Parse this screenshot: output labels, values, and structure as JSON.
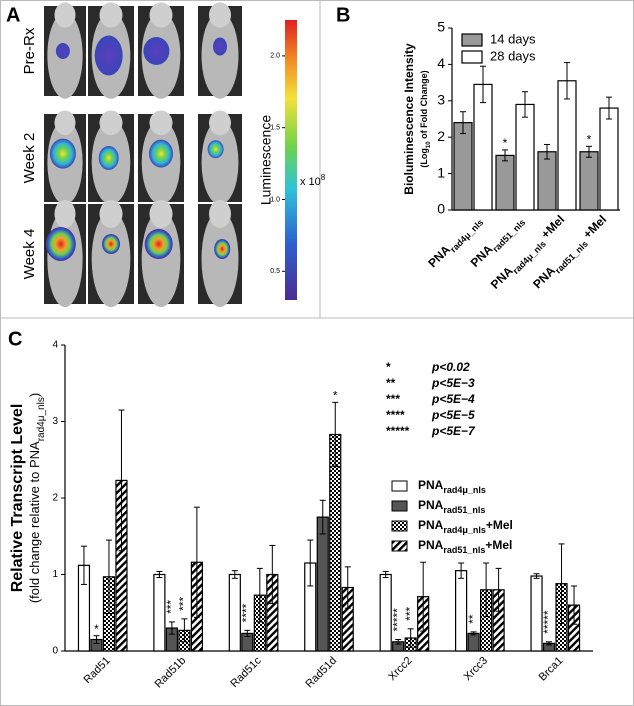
{
  "panel_a": {
    "label": "A",
    "rows": [
      "Pre-Rx",
      "Week 2",
      "Week 4"
    ],
    "colorbar": {
      "title": "Luminescence",
      "multiplier": "x 10",
      "exponent": "8",
      "clim": [
        0.3,
        2.25
      ],
      "ticks": [
        0.5,
        {
          "value": 1,
          "label": "1.0"
        },
        1.5,
        {
          "value": 2,
          "label": "2.0"
        }
      ]
    }
  },
  "chart_data": [
    {
      "type": "bar",
      "panel_label": "B",
      "ylabel": "Bioluminescence Intensity",
      "ylabel2": {
        "main": "(Log",
        "sub": "10",
        "suffix": " of Fold Change)"
      },
      "categories": [
        {
          "main": "PNA",
          "sub": "rad4μ_nls"
        },
        {
          "main": "PNA",
          "sub": "rad51_nls"
        },
        {
          "main": "PNA",
          "sub": "rad4μ_nls",
          "suffix": " +Mel"
        },
        {
          "main": "PNA",
          "sub": "rad51_nls",
          "suffix": " +Mel"
        }
      ],
      "series": [
        {
          "name": "14 days",
          "color": "#999999",
          "values": [
            2.4,
            1.5,
            1.6,
            1.6
          ],
          "errors": [
            0.3,
            0.15,
            0.2,
            0.15
          ],
          "significance": [
            null,
            "*",
            null,
            "*"
          ]
        },
        {
          "name": "28 days",
          "color": "#ffffff",
          "values": [
            3.45,
            2.9,
            3.55,
            2.8
          ],
          "errors": [
            0.5,
            0.35,
            0.5,
            0.3
          ]
        }
      ],
      "ylim": [
        0,
        5
      ],
      "yticks": [
        0,
        1,
        2,
        3,
        4,
        5
      ],
      "legend": "upper left"
    },
    {
      "type": "bar",
      "panel_label": "C",
      "ylabel": "Relative Transcript Level",
      "ylabel2": {
        "main": "(fold change relative to PNA",
        "sub": "rad4μ_nls",
        "suffix": ")"
      },
      "categories": [
        "Rad51",
        "Rad51b",
        "Rad51c",
        "Rad51d",
        "Xrcc2",
        "Xrcc3",
        "Brca1"
      ],
      "series": [
        {
          "name": {
            "main": "PNA",
            "sub": "rad4μ_nls"
          },
          "color": "#ffffff",
          "values": [
            1.12,
            1.0,
            1.0,
            1.15,
            1.0,
            1.05,
            0.98
          ],
          "errors": [
            0.25,
            0.04,
            0.05,
            0.3,
            0.04,
            0.1,
            0.03
          ]
        },
        {
          "name": {
            "main": "PNA",
            "sub": "rad51_nls"
          },
          "color": "#555555",
          "values": [
            0.15,
            0.3,
            0.23,
            1.75,
            0.12,
            0.23,
            0.1
          ],
          "errors": [
            0.05,
            0.08,
            0.04,
            0.22,
            0.03,
            0.02,
            0.02
          ],
          "significance": [
            "*",
            "***",
            "****",
            null,
            "*****",
            "**",
            "*****"
          ]
        },
        {
          "name": {
            "main": "PNA",
            "sub": "rad4μ_nls",
            "suffix": "+Mel"
          },
          "color": "#000000",
          "pattern": "checker",
          "values": [
            0.97,
            0.27,
            0.73,
            2.83,
            0.17,
            0.8,
            0.88
          ],
          "errors": [
            0.48,
            0.15,
            0.35,
            0.42,
            0.12,
            0.35,
            0.52
          ],
          "significance": [
            null,
            "***",
            null,
            "*",
            "***",
            null,
            null
          ]
        },
        {
          "name": {
            "main": "PNA",
            "sub": "rad51_nls",
            "suffix": "+Mel"
          },
          "color": "#000000",
          "pattern": "hatch",
          "values": [
            2.23,
            1.16,
            1.0,
            0.83,
            0.71,
            0.8,
            0.6
          ],
          "errors": [
            0.92,
            0.72,
            0.38,
            0.27,
            0.45,
            0.28,
            0.25
          ]
        }
      ],
      "ylim": [
        0,
        4
      ],
      "yticks": [
        0,
        1,
        2,
        3,
        4
      ],
      "legend": "upper right",
      "significance_key": [
        {
          "stars": "*",
          "p": "p<0.02"
        },
        {
          "stars": "**",
          "p": "p<5E−3"
        },
        {
          "stars": "***",
          "p": "p<5E−4"
        },
        {
          "stars": "****",
          "p": "p<5E−5"
        },
        {
          "stars": "*****",
          "p": "p<5E−7"
        }
      ]
    }
  ]
}
